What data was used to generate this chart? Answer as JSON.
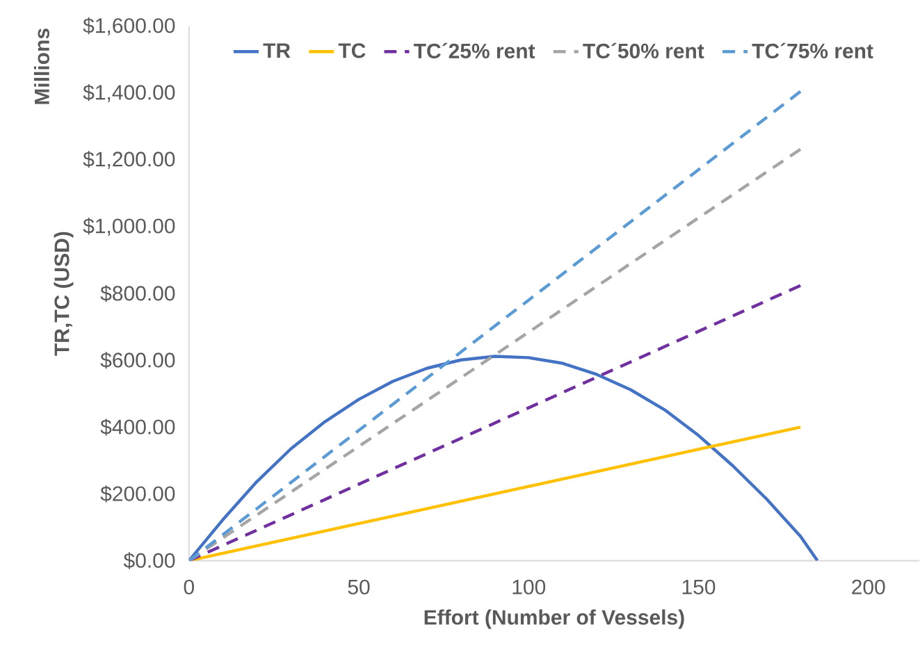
{
  "chart_data": {
    "type": "line",
    "xlabel": "Effort (Number of Vessels)",
    "ylabel": "TR,TC (USD)",
    "annotations": [
      "Millions"
    ],
    "xlim": [
      0,
      215
    ],
    "xticks": [
      0,
      50,
      100,
      150,
      200
    ],
    "ylim": [
      0,
      1600
    ],
    "yticks": [
      {
        "value": 0,
        "label": "$0.00"
      },
      {
        "value": 200,
        "label": "$200.00"
      },
      {
        "value": 400,
        "label": "$400.00"
      },
      {
        "value": 600,
        "label": "$600.00"
      },
      {
        "value": 800,
        "label": "$800.00"
      },
      {
        "value": 1000,
        "label": "$1,000.00"
      },
      {
        "value": 1200,
        "label": "$1,200.00"
      },
      {
        "value": 1400,
        "label": "$1,400.00"
      },
      {
        "value": 1600,
        "label": "$1,600.00"
      }
    ],
    "grid": false,
    "legend": "top",
    "series": [
      {
        "name": "TR",
        "color": "#4472c4",
        "line_style": "solid",
        "x": [
          0,
          10,
          20,
          30,
          40,
          50,
          60,
          70,
          80,
          90,
          100,
          110,
          120,
          130,
          140,
          150,
          160,
          170,
          180,
          185
        ],
        "values": [
          0,
          123,
          237,
          335,
          416,
          483,
          537,
          576,
          601,
          612,
          608,
          591,
          558,
          512,
          452,
          375,
          285,
          185,
          73,
          0
        ]
      },
      {
        "name": "TC",
        "color": "#ffc000",
        "line_style": "solid",
        "x": [
          0,
          180
        ],
        "values": [
          0,
          400
        ]
      },
      {
        "name": "TC´25% rent",
        "color": "#7030a0",
        "line_style": "dashed",
        "x": [
          0,
          180
        ],
        "values": [
          0,
          824
        ]
      },
      {
        "name": "TC´50% rent",
        "color": "#a5a5a5",
        "line_style": "dashed",
        "x": [
          0,
          180
        ],
        "values": [
          0,
          1232
        ]
      },
      {
        "name": "TC´75% rent",
        "color": "#5b9bd5",
        "line_style": "dashed",
        "x": [
          0,
          180
        ],
        "values": [
          0,
          1405
        ]
      }
    ]
  }
}
